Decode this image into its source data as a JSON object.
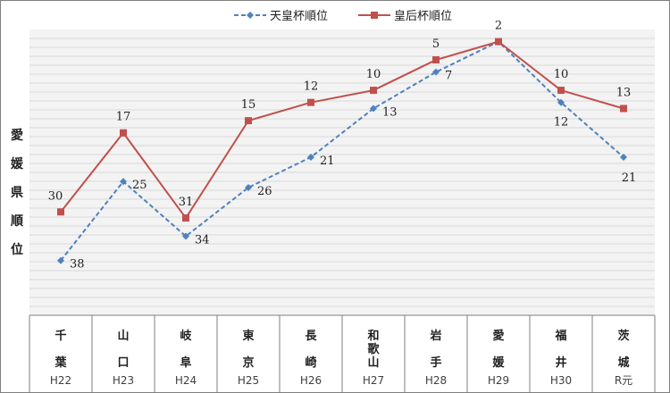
{
  "chart_data": {
    "type": "line",
    "categories": [
      {
        "name": "千葉",
        "era": "H22"
      },
      {
        "name": "山口",
        "era": "H23"
      },
      {
        "name": "岐阜",
        "era": "H24"
      },
      {
        "name": "東京",
        "era": "H25"
      },
      {
        "name": "長崎",
        "era": "H26"
      },
      {
        "name": "和歌山",
        "era": "H27"
      },
      {
        "name": "岩手",
        "era": "H28"
      },
      {
        "name": "愛媛",
        "era": "H29"
      },
      {
        "name": "福井",
        "era": "H30"
      },
      {
        "name": "茨城",
        "era": "R元"
      }
    ],
    "series": [
      {
        "name": "天皇杯順位",
        "color": "#4f81bd",
        "marker": "diamond",
        "dash": true,
        "values": [
          38,
          25,
          34,
          26,
          21,
          13,
          7,
          2,
          12,
          21
        ]
      },
      {
        "name": "皇后杯順位",
        "color": "#c0504d",
        "marker": "square",
        "dash": false,
        "values": [
          30,
          17,
          31,
          15,
          12,
          10,
          5,
          2,
          10,
          13
        ]
      }
    ],
    "ylabel": "愛媛県順位",
    "y_reversed": true,
    "ylim": [
      0,
      47
    ],
    "grid": true,
    "legend_position": "top-center"
  }
}
